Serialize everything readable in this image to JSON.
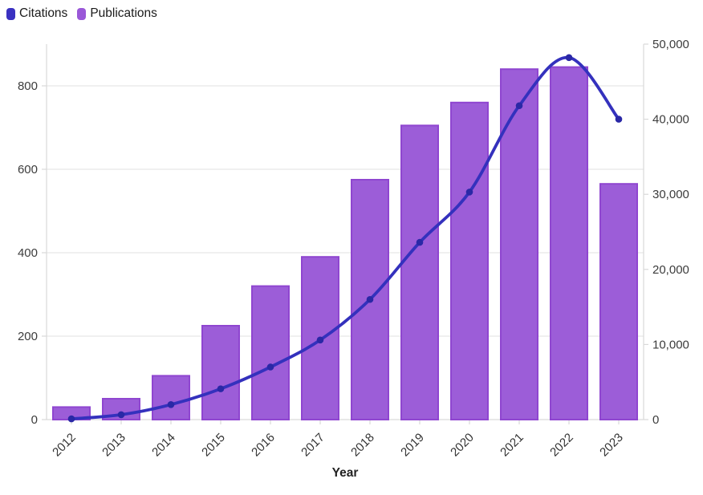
{
  "legend": {
    "items": [
      {
        "label": "Citations",
        "color": "#3a31c1"
      },
      {
        "label": "Publications",
        "color": "#9a58d8"
      }
    ]
  },
  "chart_data": {
    "type": "combo-bar-line",
    "categories": [
      "2012",
      "2013",
      "2014",
      "2015",
      "2016",
      "2017",
      "2018",
      "2019",
      "2020",
      "2021",
      "2022",
      "2023"
    ],
    "series": [
      {
        "name": "Citations",
        "type": "line",
        "axis": "right",
        "color": "#3431bd",
        "point_color": "#2a28a6",
        "values": [
          100,
          650,
          2000,
          4100,
          7000,
          10600,
          16000,
          23600,
          30300,
          41800,
          48200,
          40000
        ]
      },
      {
        "name": "Publications",
        "type": "bar",
        "axis": "left",
        "color": "#9c5dd8",
        "border_color": "#8f46d0",
        "values": [
          30,
          50,
          105,
          225,
          320,
          390,
          575,
          705,
          760,
          840,
          845,
          565
        ]
      }
    ],
    "xlabel": "Year",
    "left_axis": {
      "ticks": [
        0,
        200,
        400,
        600,
        800
      ],
      "max": 900
    },
    "right_axis": {
      "ticks": [
        0,
        10000,
        20000,
        30000,
        40000,
        50000
      ],
      "max": 50000
    },
    "grid": "horizontal",
    "legend_position": "top-left",
    "colors": {
      "grid": "#ebebeb",
      "axis": "#d9d9d9",
      "tick_text": "#3c3c3c"
    }
  }
}
